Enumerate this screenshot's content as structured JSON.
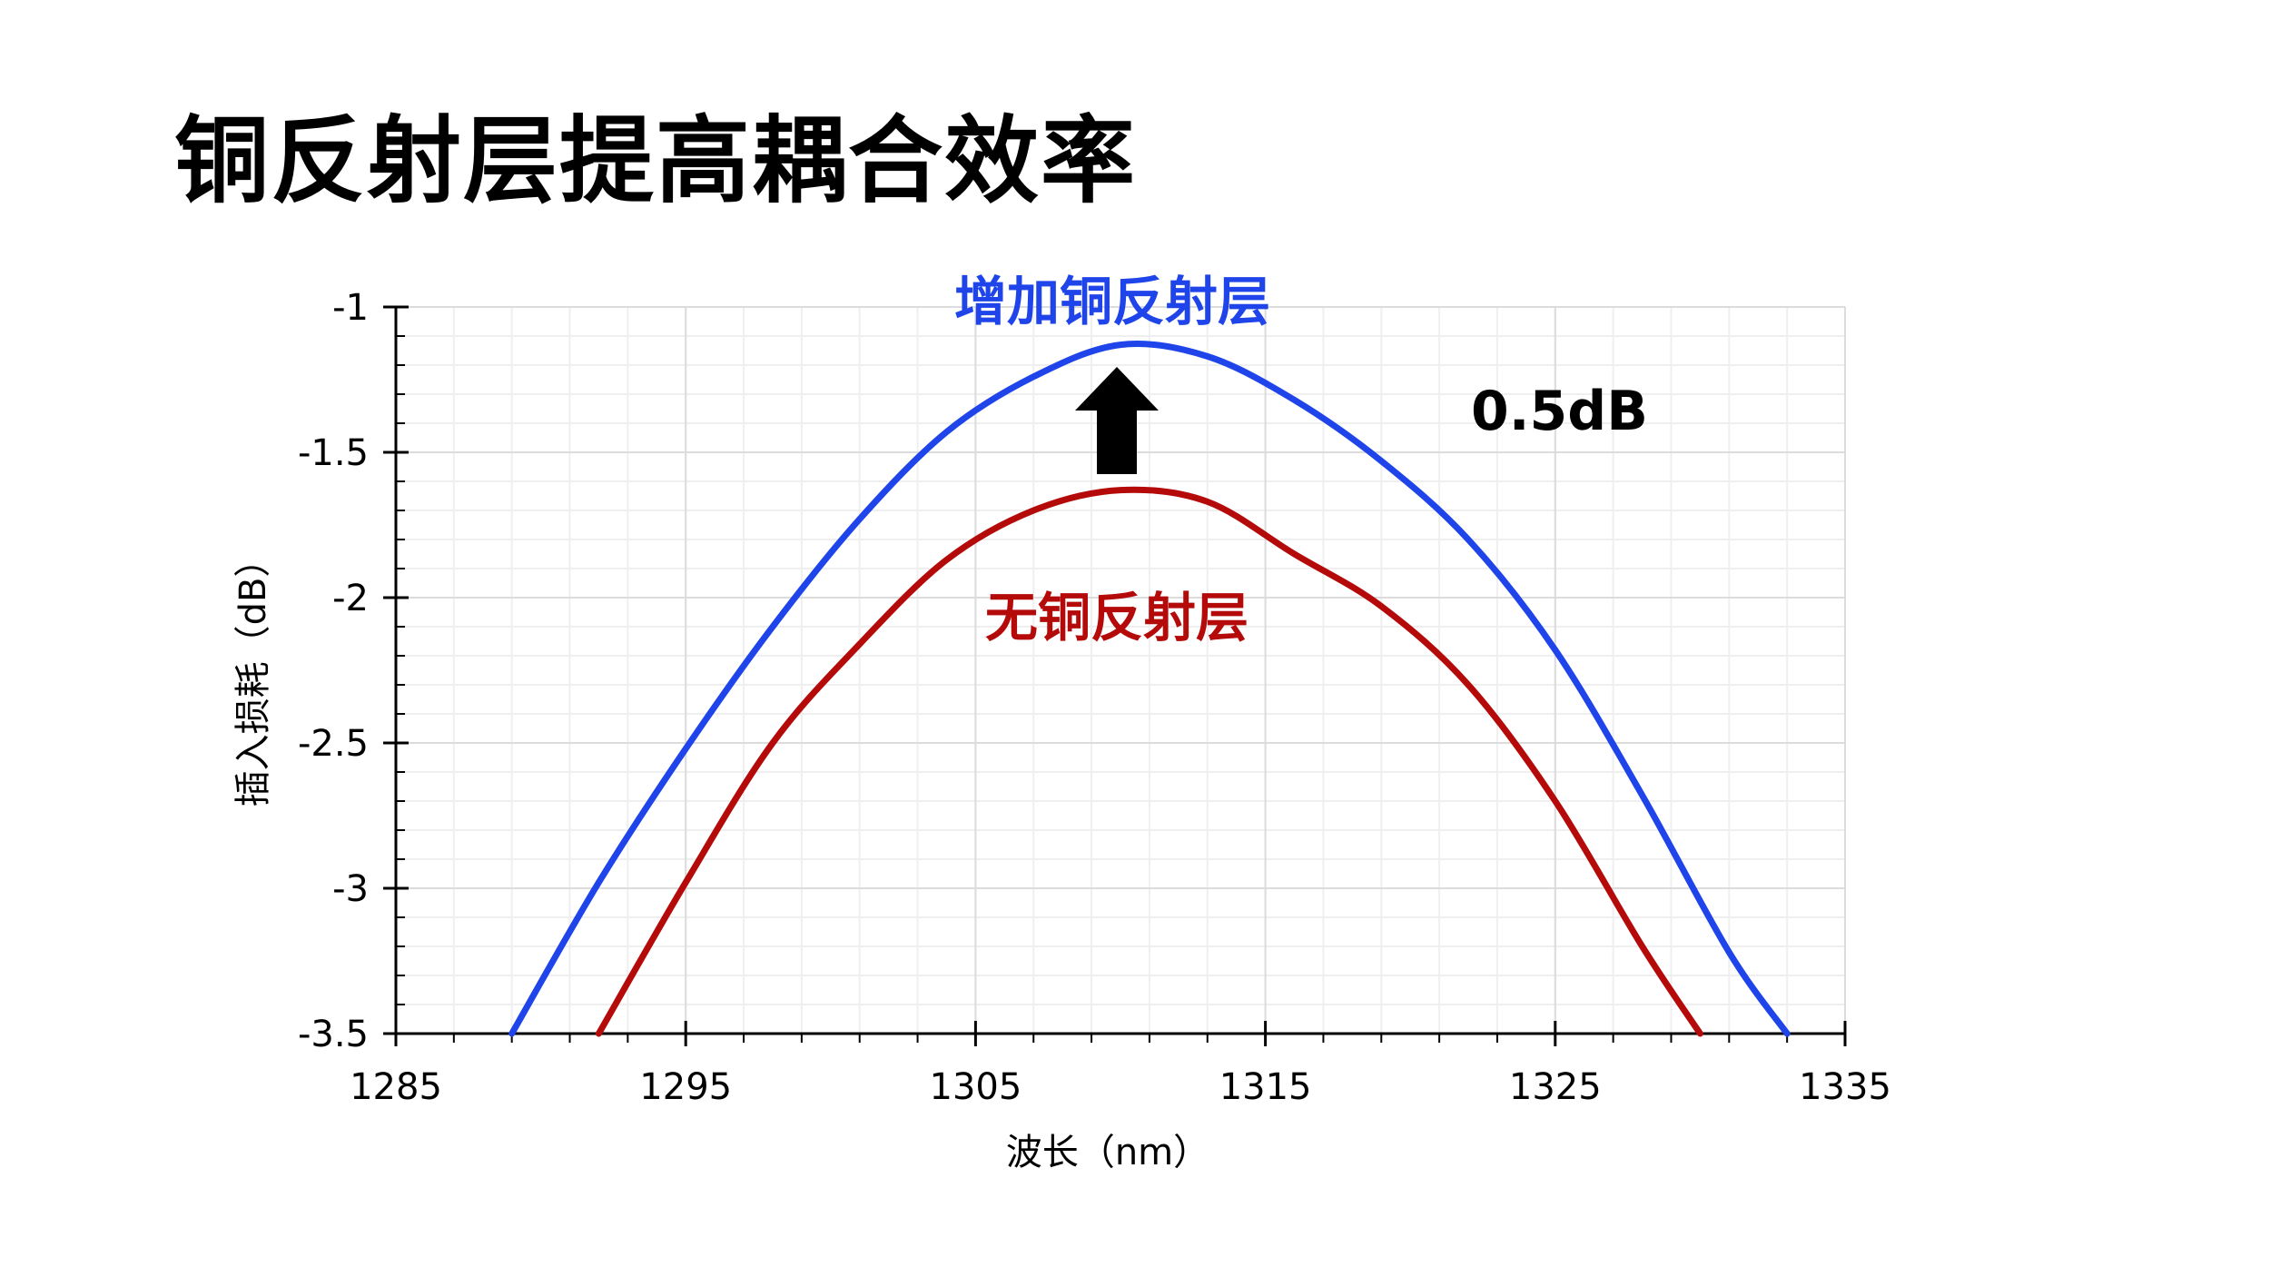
{
  "slide": {
    "title": "铜反射层提高耦合效率"
  },
  "annotations": {
    "blue_label": "增加铜反射层",
    "red_label": "无铜反射层",
    "delta_label": "0.5dB"
  },
  "colors": {
    "with_copper": "#1f45ea",
    "without_copper": "#b40a0a",
    "arrow": "#000000",
    "grid": "#dcdcdc"
  },
  "chart_data": {
    "type": "line",
    "xlabel": "波长（nm）",
    "ylabel": "插入损耗（dB）",
    "xlim": [
      1285,
      1335
    ],
    "ylim": [
      -3.5,
      -1
    ],
    "x_ticks": [
      1285,
      1295,
      1305,
      1315,
      1325,
      1335
    ],
    "y_ticks": [
      -1,
      -1.5,
      -2,
      -2.5,
      -3,
      -3.5
    ],
    "grid": true,
    "series": [
      {
        "name": "增加铜反射层",
        "color": "#1f45ea",
        "x": [
          1289,
          1292,
          1295,
          1298,
          1301,
          1304,
          1307,
          1310,
          1313,
          1316,
          1319,
          1322,
          1325,
          1328,
          1331,
          1333
        ],
        "y": [
          -3.5,
          -2.98,
          -2.52,
          -2.1,
          -1.73,
          -1.43,
          -1.24,
          -1.13,
          -1.17,
          -1.32,
          -1.53,
          -1.8,
          -2.18,
          -2.68,
          -3.22,
          -3.5
        ]
      },
      {
        "name": "无铜反射层",
        "color": "#b40a0a",
        "x": [
          1292,
          1295,
          1298,
          1301,
          1304,
          1307,
          1310,
          1313,
          1316,
          1319,
          1322,
          1325,
          1328,
          1330
        ],
        "y": [
          -3.5,
          -2.98,
          -2.5,
          -2.16,
          -1.87,
          -1.7,
          -1.63,
          -1.67,
          -1.85,
          -2.03,
          -2.3,
          -2.7,
          -3.2,
          -3.5
        ]
      }
    ]
  }
}
